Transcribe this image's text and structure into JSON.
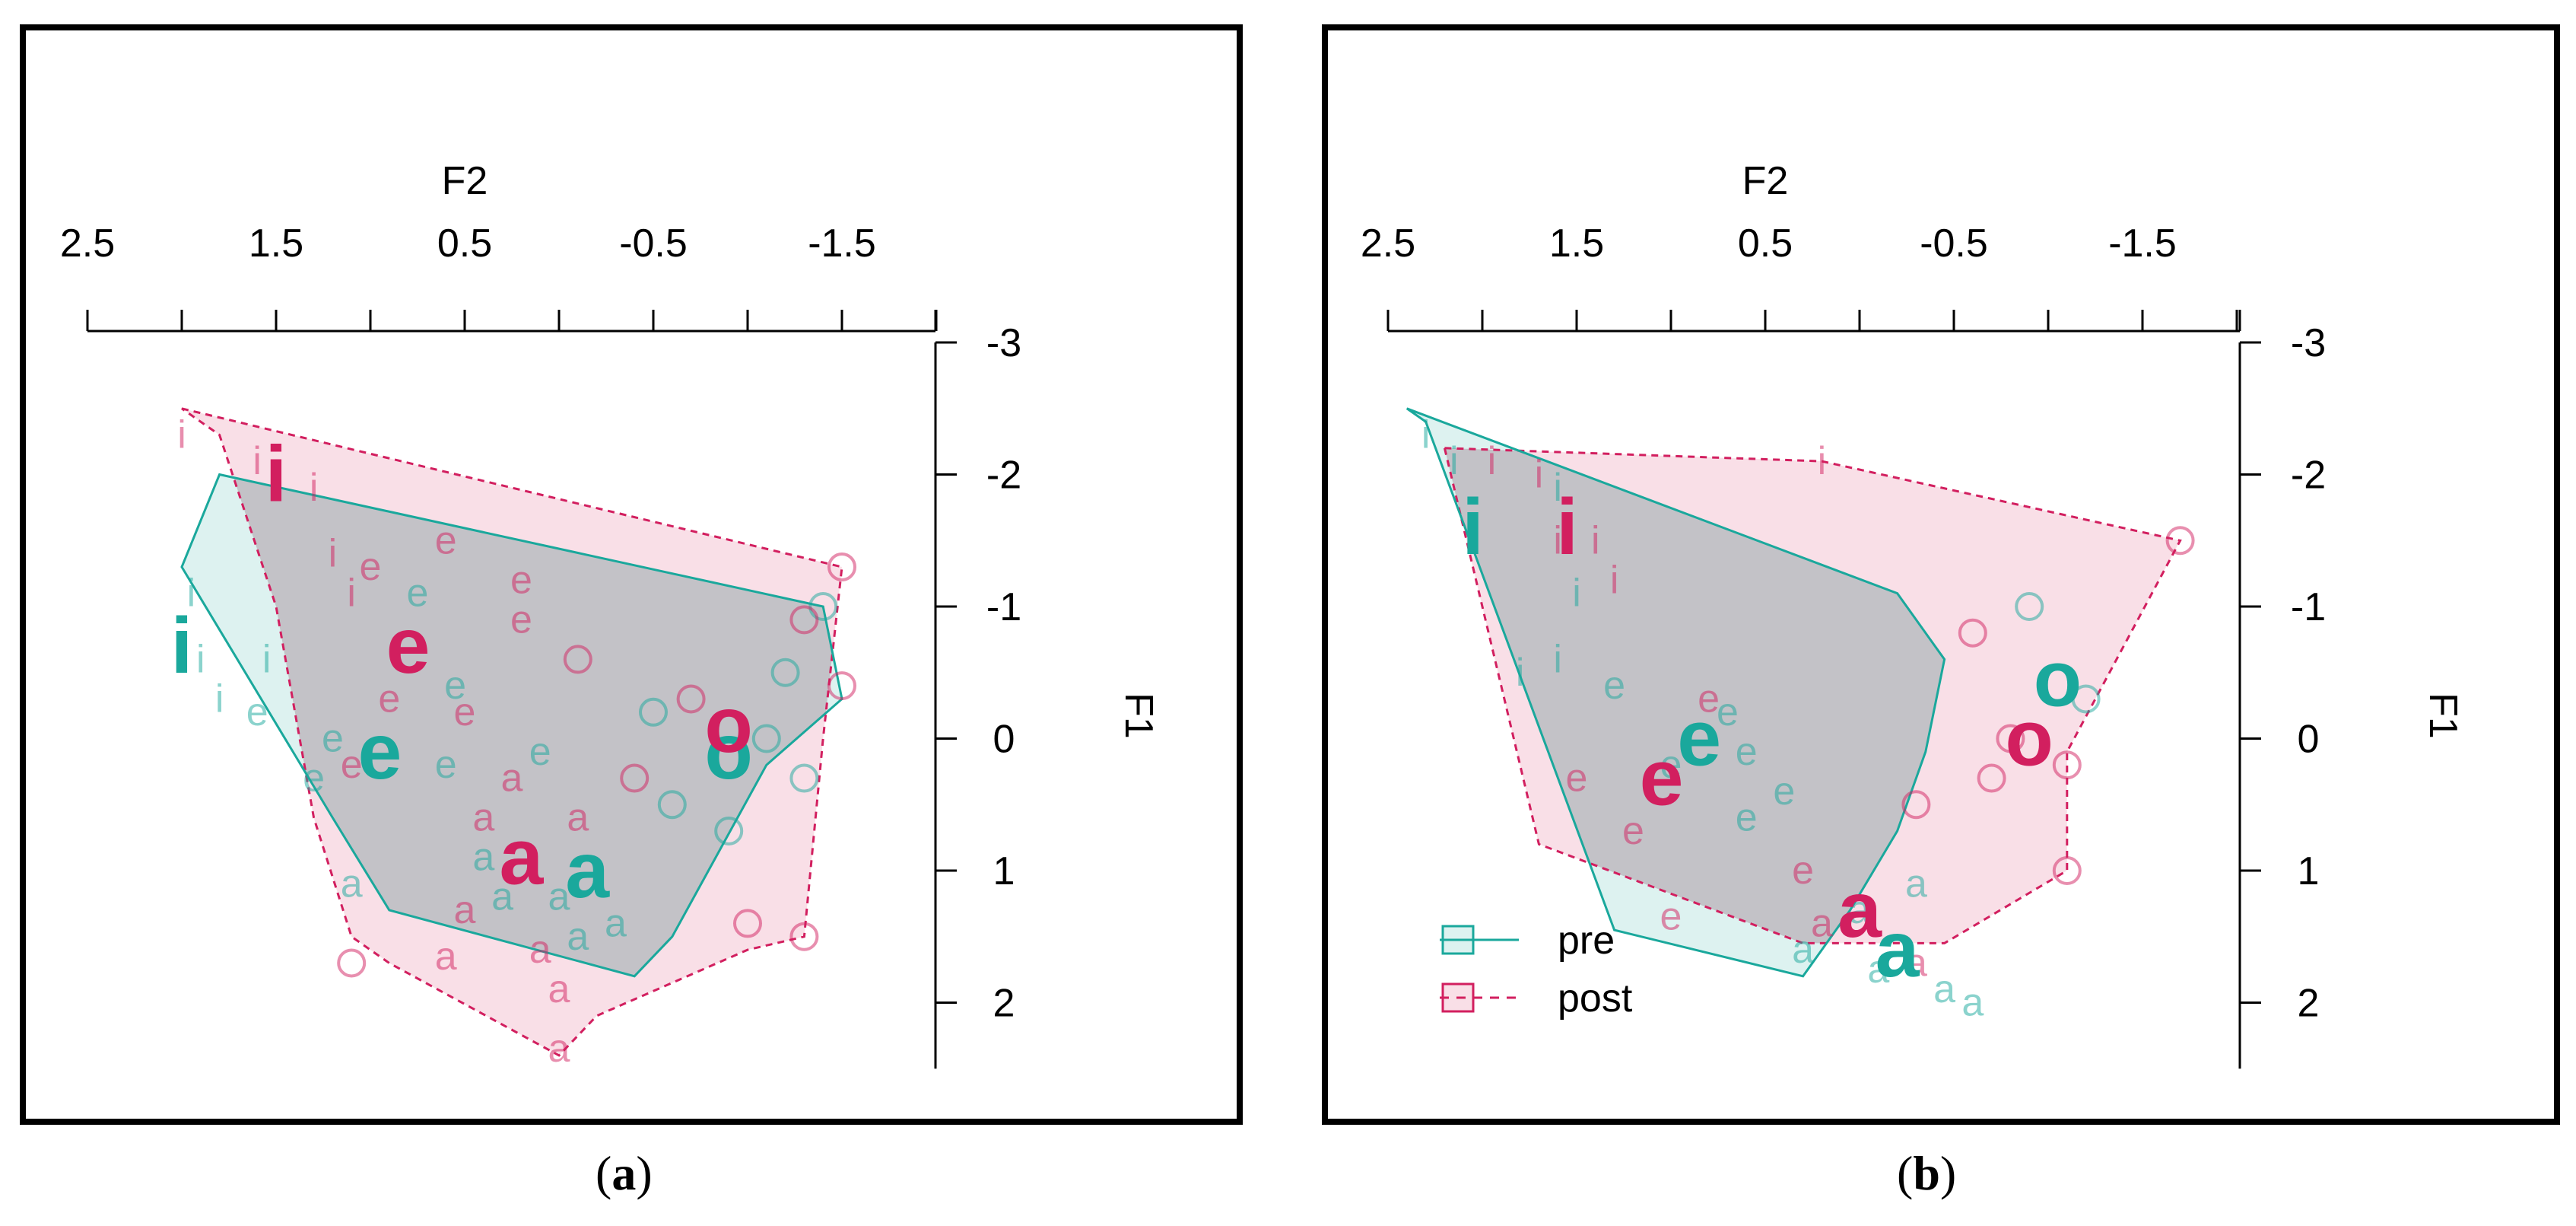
{
  "colors": {
    "pre": "#1aa89c",
    "post": "#d21f5f",
    "pre_fill": "rgba(26,168,156,0.15)",
    "post_fill": "rgba(214,40,95,0.15)",
    "overlap_fill": "rgba(165,165,170,0.40)"
  },
  "chart_data": [
    {
      "type": "scatter",
      "panel_label": "a",
      "title": "",
      "xlabel": "F2",
      "ylabel": "F1",
      "x_axis": {
        "label": "F2",
        "reversed": true,
        "lim": [
          2.5,
          -2
        ],
        "ticks": [
          2.5,
          2.0,
          1.5,
          1.0,
          0.5,
          0.0,
          -0.5,
          -1.0,
          -1.5,
          -2.0
        ],
        "tick_labels": [
          "2.5",
          "1.5",
          "0.5",
          "-0.5",
          "-1.5"
        ],
        "labeled_ticks": [
          2.5,
          1.5,
          0.5,
          -0.5,
          -1.5
        ]
      },
      "y_axis": {
        "label": "F1",
        "reversed": true,
        "lim": [
          -3,
          2.5
        ],
        "ticks": [
          -3,
          -2,
          -1,
          0,
          1,
          2
        ],
        "tick_labels": [
          "-3",
          "-2",
          "-1",
          "0",
          "1",
          "2"
        ]
      },
      "legend": null,
      "series": [
        {
          "name": "pre",
          "hull": [
            [
              1.8,
              -2.0
            ],
            [
              -1.4,
              -1.0
            ],
            [
              -1.5,
              -0.3
            ],
            [
              -1.1,
              0.2
            ],
            [
              -0.6,
              1.5
            ],
            [
              -0.4,
              1.8
            ],
            [
              0.9,
              1.3
            ],
            [
              1.2,
              0.6
            ],
            [
              2.0,
              -1.3
            ]
          ],
          "means": [
            {
              "label": "i",
              "x": 2.0,
              "y": -0.7
            },
            {
              "label": "e",
              "x": 0.95,
              "y": 0.1
            },
            {
              "label": "a",
              "x": -0.15,
              "y": 1.0
            },
            {
              "label": "o",
              "x": -0.9,
              "y": 0.1
            }
          ],
          "tokens": [
            {
              "label": "i",
              "x": 1.95,
              "y": -1.1
            },
            {
              "label": "i",
              "x": 1.9,
              "y": -0.6
            },
            {
              "label": "i",
              "x": 1.8,
              "y": -0.3
            },
            {
              "label": "i",
              "x": 1.55,
              "y": -0.6
            },
            {
              "label": "e",
              "x": 1.6,
              "y": -0.2
            },
            {
              "label": "e",
              "x": 1.2,
              "y": 0.0
            },
            {
              "label": "e",
              "x": 1.3,
              "y": 0.3
            },
            {
              "label": "e",
              "x": 0.75,
              "y": -1.1
            },
            {
              "label": "e",
              "x": 0.55,
              "y": -0.4
            },
            {
              "label": "e",
              "x": 0.1,
              "y": 0.1
            },
            {
              "label": "e",
              "x": 0.6,
              "y": 0.2
            },
            {
              "label": "a",
              "x": 0.0,
              "y": 1.2
            },
            {
              "label": "a",
              "x": -0.1,
              "y": 1.5
            },
            {
              "label": "a",
              "x": 0.3,
              "y": 1.2
            },
            {
              "label": "a",
              "x": -0.3,
              "y": 1.4
            },
            {
              "label": "a",
              "x": 0.4,
              "y": 0.9
            },
            {
              "label": "a",
              "x": 1.1,
              "y": 1.1
            },
            {
              "label": "o",
              "x": -0.6,
              "y": 0.5
            },
            {
              "label": "o",
              "x": -1.1,
              "y": 0.0
            },
            {
              "label": "o",
              "x": -1.2,
              "y": -0.5
            },
            {
              "label": "o",
              "x": -0.9,
              "y": 0.7
            },
            {
              "label": "o",
              "x": -1.3,
              "y": 0.3
            },
            {
              "label": "o",
              "x": -1.4,
              "y": -1.0
            },
            {
              "label": "o",
              "x": -0.5,
              "y": -0.2
            }
          ]
        },
        {
          "name": "post",
          "hull": [
            [
              2.0,
              -2.5
            ],
            [
              -1.5,
              -1.3
            ],
            [
              -1.4,
              0.0
            ],
            [
              -1.3,
              1.5
            ],
            [
              -1.0,
              1.6
            ],
            [
              -0.2,
              2.1
            ],
            [
              0.0,
              2.4
            ],
            [
              0.9,
              1.7
            ],
            [
              1.1,
              1.5
            ],
            [
              1.3,
              0.6
            ],
            [
              1.5,
              -1.0
            ],
            [
              1.8,
              -2.3
            ]
          ],
          "means": [
            {
              "label": "i",
              "x": 1.5,
              "y": -2.0
            },
            {
              "label": "e",
              "x": 0.8,
              "y": -0.7
            },
            {
              "label": "a",
              "x": 0.2,
              "y": 0.9
            },
            {
              "label": "o",
              "x": -0.9,
              "y": -0.1
            }
          ],
          "tokens": [
            {
              "label": "i",
              "x": 2.0,
              "y": -2.3
            },
            {
              "label": "i",
              "x": 1.6,
              "y": -2.1
            },
            {
              "label": "i",
              "x": 1.3,
              "y": -1.9
            },
            {
              "label": "i",
              "x": 1.2,
              "y": -1.4
            },
            {
              "label": "i",
              "x": 1.1,
              "y": -1.1
            },
            {
              "label": "e",
              "x": 0.6,
              "y": -1.5
            },
            {
              "label": "e",
              "x": 0.2,
              "y": -1.2
            },
            {
              "label": "e",
              "x": 1.0,
              "y": -1.3
            },
            {
              "label": "e",
              "x": 0.9,
              "y": -0.3
            },
            {
              "label": "e",
              "x": 0.5,
              "y": -0.2
            },
            {
              "label": "e",
              "x": 0.2,
              "y": -0.9
            },
            {
              "label": "e",
              "x": 1.1,
              "y": 0.2
            },
            {
              "label": "a",
              "x": 0.4,
              "y": 0.6
            },
            {
              "label": "a",
              "x": 0.5,
              "y": 1.3
            },
            {
              "label": "a",
              "x": 0.0,
              "y": 1.9
            },
            {
              "label": "a",
              "x": 0.1,
              "y": 1.6
            },
            {
              "label": "a",
              "x": 0.6,
              "y": 1.65
            },
            {
              "label": "a",
              "x": 0.25,
              "y": 0.3
            },
            {
              "label": "a",
              "x": -0.1,
              "y": 0.6
            },
            {
              "label": "a",
              "x": 0.0,
              "y": 2.35
            },
            {
              "label": "o",
              "x": -0.7,
              "y": -0.3
            },
            {
              "label": "o",
              "x": -1.3,
              "y": -0.9
            },
            {
              "label": "o",
              "x": -1.5,
              "y": -1.3
            },
            {
              "label": "o",
              "x": -1.3,
              "y": 1.5
            },
            {
              "label": "o",
              "x": -1.0,
              "y": 1.4
            },
            {
              "label": "o",
              "x": -0.4,
              "y": 0.3
            },
            {
              "label": "o",
              "x": -0.1,
              "y": -0.6
            },
            {
              "label": "o",
              "x": 1.1,
              "y": 1.7
            },
            {
              "label": "o",
              "x": -1.5,
              "y": -0.4
            }
          ]
        }
      ]
    },
    {
      "type": "scatter",
      "panel_label": "b",
      "title": "",
      "xlabel": "F2",
      "ylabel": "F1",
      "x_axis": {
        "label": "F2",
        "reversed": true,
        "lim": [
          2.5,
          -2
        ],
        "ticks": [
          2.5,
          2.0,
          1.5,
          1.0,
          0.5,
          0.0,
          -0.5,
          -1.0,
          -1.5,
          -2.0
        ],
        "tick_labels": [
          "2.5",
          "1.5",
          "0.5",
          "-0.5",
          "-1.5"
        ],
        "labeled_ticks": [
          2.5,
          1.5,
          0.5,
          -0.5,
          -1.5
        ]
      },
      "y_axis": {
        "label": "F1",
        "reversed": true,
        "lim": [
          -3,
          2.5
        ],
        "ticks": [
          -3,
          -2,
          -1,
          0,
          1,
          2
        ],
        "tick_labels": [
          "-3",
          "-2",
          "-1",
          "0",
          "1",
          "2"
        ]
      },
      "legend": {
        "position": "bottom-left",
        "entries": [
          {
            "name": "pre",
            "style": "solid"
          },
          {
            "name": "post",
            "style": "dashed"
          }
        ]
      },
      "series": [
        {
          "name": "pre",
          "hull": [
            [
              2.4,
              -2.5
            ],
            [
              -0.2,
              -1.1
            ],
            [
              -0.45,
              -0.6
            ],
            [
              -0.35,
              0.1
            ],
            [
              -0.2,
              0.7
            ],
            [
              0.05,
              1.3
            ],
            [
              0.3,
              1.8
            ],
            [
              1.3,
              1.45
            ],
            [
              2.3,
              -2.4
            ]
          ],
          "means": [
            {
              "label": "i",
              "x": 2.05,
              "y": -1.6
            },
            {
              "label": "e",
              "x": 0.85,
              "y": 0.0
            },
            {
              "label": "a",
              "x": -0.2,
              "y": 1.6
            },
            {
              "label": "o",
              "x": -1.05,
              "y": -0.45
            }
          ],
          "tokens": [
            {
              "label": "i",
              "x": 2.3,
              "y": -2.3
            },
            {
              "label": "i",
              "x": 2.15,
              "y": -2.1
            },
            {
              "label": "i",
              "x": 1.6,
              "y": -1.9
            },
            {
              "label": "i",
              "x": 1.5,
              "y": -1.1
            },
            {
              "label": "i",
              "x": 1.6,
              "y": -0.6
            },
            {
              "label": "i",
              "x": 1.8,
              "y": -0.5
            },
            {
              "label": "e",
              "x": 1.3,
              "y": -0.4
            },
            {
              "label": "e",
              "x": 0.7,
              "y": -0.2
            },
            {
              "label": "e",
              "x": 0.4,
              "y": 0.4
            },
            {
              "label": "e",
              "x": 0.6,
              "y": 0.6
            },
            {
              "label": "e",
              "x": 1.0,
              "y": 0.2
            },
            {
              "label": "e",
              "x": 0.6,
              "y": 0.1
            },
            {
              "label": "a",
              "x": 0.0,
              "y": 1.3
            },
            {
              "label": "a",
              "x": -0.1,
              "y": 1.75
            },
            {
              "label": "a",
              "x": -0.3,
              "y": 1.1
            },
            {
              "label": "a",
              "x": -0.45,
              "y": 1.9
            },
            {
              "label": "a",
              "x": -0.6,
              "y": 2.0
            },
            {
              "label": "a",
              "x": 0.3,
              "y": 1.6
            },
            {
              "label": "o",
              "x": -0.9,
              "y": -1.0
            },
            {
              "label": "o",
              "x": -1.2,
              "y": -0.3
            }
          ]
        },
        {
          "name": "post",
          "hull": [
            [
              2.2,
              -2.2
            ],
            [
              0.2,
              -2.1
            ],
            [
              -1.7,
              -1.5
            ],
            [
              -1.1,
              0.1
            ],
            [
              -1.1,
              1.0
            ],
            [
              -0.45,
              1.55
            ],
            [
              0.3,
              1.55
            ],
            [
              1.7,
              0.8
            ],
            [
              2.2,
              -2.2
            ]
          ],
          "means": [
            {
              "label": "i",
              "x": 1.55,
              "y": -1.6
            },
            {
              "label": "e",
              "x": 1.05,
              "y": 0.3
            },
            {
              "label": "a",
              "x": -0.0,
              "y": 1.3
            },
            {
              "label": "o",
              "x": -0.9,
              "y": 0.0
            }
          ],
          "tokens": [
            {
              "label": "i",
              "x": 1.95,
              "y": -2.1
            },
            {
              "label": "i",
              "x": 1.7,
              "y": -2.0
            },
            {
              "label": "i",
              "x": 1.6,
              "y": -1.5
            },
            {
              "label": "i",
              "x": 1.4,
              "y": -1.5
            },
            {
              "label": "i",
              "x": 1.3,
              "y": -1.2
            },
            {
              "label": "i",
              "x": 0.2,
              "y": -2.1
            },
            {
              "label": "e",
              "x": 0.8,
              "y": -0.3
            },
            {
              "label": "e",
              "x": 1.2,
              "y": 0.7
            },
            {
              "label": "e",
              "x": 1.5,
              "y": 0.3
            },
            {
              "label": "e",
              "x": 0.3,
              "y": 1.0
            },
            {
              "label": "e",
              "x": 1.0,
              "y": 1.35
            },
            {
              "label": "a",
              "x": 0.2,
              "y": 1.4
            },
            {
              "label": "a",
              "x": -0.3,
              "y": 1.7
            },
            {
              "label": "o",
              "x": -0.6,
              "y": -0.8
            },
            {
              "label": "o",
              "x": -0.8,
              "y": 0.0
            },
            {
              "label": "o",
              "x": -1.1,
              "y": 0.2
            },
            {
              "label": "o",
              "x": -1.7,
              "y": -1.5
            },
            {
              "label": "o",
              "x": -1.1,
              "y": 1.0
            },
            {
              "label": "o",
              "x": -0.7,
              "y": 0.3
            },
            {
              "label": "o",
              "x": -0.3,
              "y": 0.5
            }
          ]
        }
      ]
    }
  ]
}
